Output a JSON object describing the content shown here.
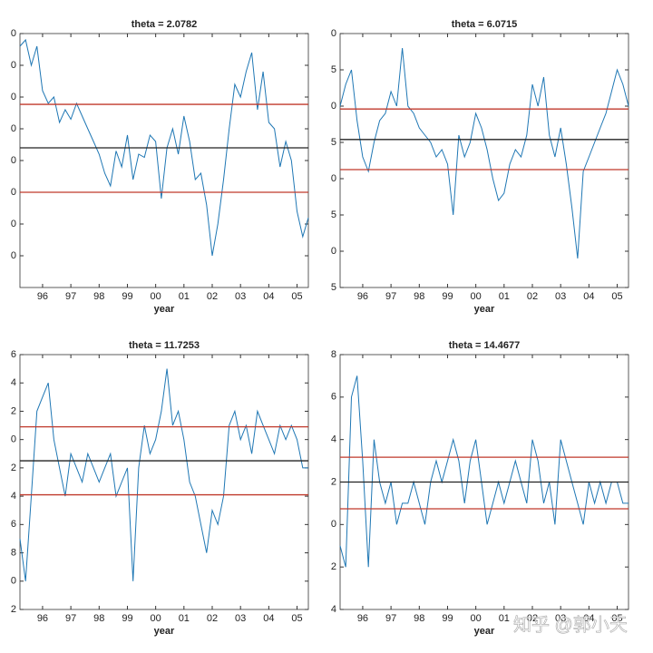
{
  "chart_data": [
    {
      "type": "line",
      "title": "theta = 2.0782",
      "xlabel": "year",
      "x": [
        1995.2,
        1995.4,
        1995.6,
        1995.8,
        1996,
        1996.2,
        1996.4,
        1996.6,
        1996.8,
        1997,
        1997.2,
        1997.4,
        1997.6,
        1997.8,
        1998,
        1998.2,
        1998.4,
        1998.6,
        1998.8,
        1999,
        1999.2,
        1999.4,
        1999.6,
        1999.8,
        2000,
        2000.2,
        2000.4,
        2000.6,
        2000.8,
        2001,
        2001.2,
        2001.4,
        2001.6,
        2001.8,
        2002,
        2002.2,
        2002.4,
        2002.6,
        2002.8,
        2003,
        2003.2,
        2003.4,
        2003.6,
        2003.8,
        2004,
        2004.2,
        2004.4,
        2004.6,
        2004.8,
        2005,
        2005.2,
        2005.4
      ],
      "series": [
        {
          "color": "#1f77b4",
          "values": [
            36,
            38,
            30,
            36,
            22,
            18,
            20,
            12,
            16,
            13,
            18,
            14,
            10,
            6,
            2,
            -4,
            -8,
            3,
            -2,
            8,
            -6,
            2,
            1,
            8,
            6,
            -12,
            4,
            10,
            2,
            14,
            6,
            -6,
            -4,
            -14,
            -30,
            -20,
            -6,
            10,
            24,
            20,
            28,
            34,
            16,
            28,
            12,
            10,
            -2,
            6,
            0,
            -16,
            -24,
            -18
          ]
        }
      ],
      "reference_lines": [
        {
          "value": 17.7,
          "color": "#c0392b"
        },
        {
          "value": 4,
          "color": "#222222"
        },
        {
          "value": -10,
          "color": "#c0392b"
        }
      ],
      "xlim": [
        1995.2,
        2005.4
      ],
      "xticks": [
        {
          "value": 1996,
          "label": "96"
        },
        {
          "value": 1997,
          "label": "97"
        },
        {
          "value": 1998,
          "label": "98"
        },
        {
          "value": 1999,
          "label": "99"
        },
        {
          "value": 2000,
          "label": "00"
        },
        {
          "value": 2001,
          "label": "01"
        },
        {
          "value": 2002,
          "label": "02"
        },
        {
          "value": 2003,
          "label": "03"
        },
        {
          "value": 2004,
          "label": "04"
        },
        {
          "value": 2005,
          "label": "05"
        }
      ],
      "ylim": [
        -40,
        40
      ],
      "yticks": [
        {
          "value": 40,
          "label": "0"
        },
        {
          "value": 30,
          "label": "0"
        },
        {
          "value": 20,
          "label": "0"
        },
        {
          "value": 10,
          "label": "0"
        },
        0,
        {
          "value": -10,
          "label": "0"
        },
        {
          "value": -20,
          "label": "0"
        },
        {
          "value": -30,
          "label": "0"
        }
      ]
    },
    {
      "type": "line",
      "title": "theta = 6.0715",
      "xlabel": "year",
      "x": [
        1995.2,
        1995.4,
        1995.6,
        1995.8,
        1996,
        1996.2,
        1996.4,
        1996.6,
        1996.8,
        1997,
        1997.2,
        1997.4,
        1997.6,
        1997.8,
        1998,
        1998.2,
        1998.4,
        1998.6,
        1998.8,
        1999,
        1999.2,
        1999.4,
        1999.6,
        1999.8,
        2000,
        2000.2,
        2000.4,
        2000.6,
        2000.8,
        2001,
        2001.2,
        2001.4,
        2001.6,
        2001.8,
        2002,
        2002.2,
        2002.4,
        2002.6,
        2002.8,
        2003,
        2003.2,
        2003.4,
        2003.6,
        2003.8,
        2004,
        2004.2,
        2004.4,
        2004.6,
        2004.8,
        2005,
        2005.2,
        2005.4
      ],
      "series": [
        {
          "color": "#1f77b4",
          "values": [
            10,
            13,
            15,
            8,
            3,
            1,
            5,
            8,
            9,
            12,
            10,
            18,
            10,
            9,
            7,
            6,
            5,
            3,
            4,
            2,
            -5,
            6,
            3,
            5,
            9,
            7,
            4,
            0,
            -3,
            -2,
            2,
            4,
            3,
            6,
            13,
            10,
            14,
            6,
            3,
            7,
            2,
            -4,
            -11,
            1,
            3,
            5,
            7,
            9,
            12,
            15,
            13,
            10
          ]
        }
      ],
      "reference_lines": [
        {
          "value": 9.6,
          "color": "#c0392b"
        },
        {
          "value": 5.4,
          "color": "#222222"
        },
        {
          "value": 1.25,
          "color": "#c0392b"
        }
      ],
      "xlim": [
        1995.2,
        2005.4
      ],
      "xticks": [
        {
          "value": 1996,
          "label": "96"
        },
        {
          "value": 1997,
          "label": "97"
        },
        {
          "value": 1998,
          "label": "98"
        },
        {
          "value": 1999,
          "label": "99"
        },
        {
          "value": 2000,
          "label": "00"
        },
        {
          "value": 2001,
          "label": "01"
        },
        {
          "value": 2002,
          "label": "02"
        },
        {
          "value": 2003,
          "label": "03"
        },
        {
          "value": 2004,
          "label": "04"
        },
        {
          "value": 2005,
          "label": "05"
        }
      ],
      "ylim": [
        -15,
        20
      ],
      "yticks": [
        {
          "value": 20,
          "label": "0"
        },
        {
          "value": 15,
          "label": "5"
        },
        {
          "value": 10,
          "label": "0"
        },
        5,
        0,
        {
          "value": -5,
          "label": "5"
        },
        {
          "value": -10,
          "label": "0"
        },
        {
          "value": -15,
          "label": "5"
        }
      ]
    },
    {
      "type": "line",
      "title": "theta = 11.7253",
      "xlabel": "year",
      "x": [
        1995.2,
        1995.4,
        1995.6,
        1995.8,
        1996,
        1996.2,
        1996.4,
        1996.6,
        1996.8,
        1997,
        1997.2,
        1997.4,
        1997.6,
        1997.8,
        1998,
        1998.2,
        1998.4,
        1998.6,
        1998.8,
        1999,
        1999.2,
        1999.4,
        1999.6,
        1999.8,
        2000,
        2000.2,
        2000.4,
        2000.6,
        2000.8,
        2001,
        2001.2,
        2001.4,
        2001.6,
        2001.8,
        2002,
        2002.2,
        2002.4,
        2002.6,
        2002.8,
        2003,
        2003.2,
        2003.4,
        2003.6,
        2003.8,
        2004,
        2004.2,
        2004.4,
        2004.6,
        2004.8,
        2005,
        2005.2,
        2005.4
      ],
      "series": [
        {
          "color": "#1f77b4",
          "values": [
            -7,
            -10,
            -4,
            2,
            3,
            4,
            0,
            -2,
            -4,
            -1,
            -2,
            -3,
            -1,
            -2,
            -3,
            -2,
            -1,
            -4,
            -3,
            -2,
            -10,
            -2,
            1,
            -1,
            0,
            2,
            5,
            1,
            2,
            0,
            -3,
            -4,
            -6,
            -8,
            -5,
            -6,
            -4,
            1,
            2,
            0,
            1,
            -1,
            2,
            1,
            0,
            -1,
            1,
            0,
            1,
            0,
            -2,
            -2
          ]
        }
      ],
      "reference_lines": [
        {
          "value": 0.9,
          "color": "#c0392b"
        },
        {
          "value": -1.5,
          "color": "#222222"
        },
        {
          "value": -3.9,
          "color": "#c0392b"
        }
      ],
      "xlim": [
        1995.2,
        2005.4
      ],
      "xticks": [
        {
          "value": 1996,
          "label": "96"
        },
        {
          "value": 1997,
          "label": "97"
        },
        {
          "value": 1998,
          "label": "98"
        },
        {
          "value": 1999,
          "label": "99"
        },
        {
          "value": 2000,
          "label": "00"
        },
        {
          "value": 2001,
          "label": "01"
        },
        {
          "value": 2002,
          "label": "02"
        },
        {
          "value": 2003,
          "label": "03"
        },
        {
          "value": 2004,
          "label": "04"
        },
        {
          "value": 2005,
          "label": "05"
        }
      ],
      "ylim": [
        -12,
        6
      ],
      "yticks": [
        6,
        4,
        2,
        0,
        {
          "value": -2,
          "label": "2"
        },
        {
          "value": -4,
          "label": "4"
        },
        {
          "value": -6,
          "label": "6"
        },
        {
          "value": -8,
          "label": "8"
        },
        {
          "value": -10,
          "label": "0"
        },
        {
          "value": -12,
          "label": "2"
        }
      ]
    },
    {
      "type": "line",
      "title": "theta = 14.4677",
      "xlabel": "year",
      "x": [
        1995.2,
        1995.4,
        1995.6,
        1995.8,
        1996,
        1996.2,
        1996.4,
        1996.6,
        1996.8,
        1997,
        1997.2,
        1997.4,
        1997.6,
        1997.8,
        1998,
        1998.2,
        1998.4,
        1998.6,
        1998.8,
        1999,
        1999.2,
        1999.4,
        1999.6,
        1999.8,
        2000,
        2000.2,
        2000.4,
        2000.6,
        2000.8,
        2001,
        2001.2,
        2001.4,
        2001.6,
        2001.8,
        2002,
        2002.2,
        2002.4,
        2002.6,
        2002.8,
        2003,
        2003.2,
        2003.4,
        2003.6,
        2003.8,
        2004,
        2004.2,
        2004.4,
        2004.6,
        2004.8,
        2005,
        2005.2,
        2005.4
      ],
      "series": [
        {
          "color": "#1f77b4",
          "values": [
            -1,
            -2,
            6,
            7,
            3,
            -2,
            4,
            2,
            1,
            2,
            0,
            1,
            1,
            2,
            1,
            0,
            2,
            3,
            2,
            3,
            4,
            3,
            1,
            3,
            4,
            2,
            0,
            1,
            2,
            1,
            2,
            3,
            2,
            1,
            4,
            3,
            1,
            2,
            0,
            4,
            3,
            2,
            1,
            0,
            2,
            1,
            2,
            1,
            2,
            2,
            1,
            1
          ]
        }
      ],
      "reference_lines": [
        {
          "value": 3.17,
          "color": "#c0392b"
        },
        {
          "value": 2,
          "color": "#222222"
        },
        {
          "value": 0.74,
          "color": "#c0392b"
        }
      ],
      "xlim": [
        1995.2,
        2005.4
      ],
      "xticks": [
        {
          "value": 1996,
          "label": "96"
        },
        {
          "value": 1997,
          "label": "97"
        },
        {
          "value": 1998,
          "label": "98"
        },
        {
          "value": 1999,
          "label": "99"
        },
        {
          "value": 2000,
          "label": "00"
        },
        {
          "value": 2001,
          "label": "01"
        },
        {
          "value": 2002,
          "label": "02"
        },
        {
          "value": 2003,
          "label": "03"
        },
        {
          "value": 2004,
          "label": "04"
        },
        {
          "value": 2005,
          "label": "05"
        }
      ],
      "ylim": [
        -4,
        8
      ],
      "yticks": [
        8,
        6,
        4,
        2,
        0,
        {
          "value": -2,
          "label": "2"
        },
        {
          "value": -4,
          "label": "4"
        }
      ]
    }
  ],
  "watermark": "知乎 @郭小天"
}
